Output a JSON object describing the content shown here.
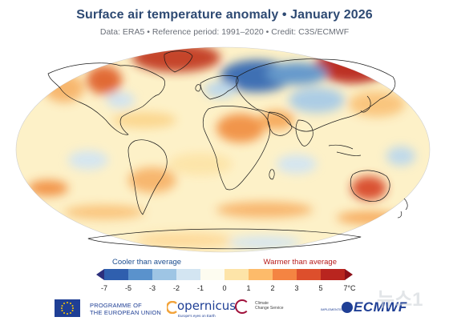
{
  "header": {
    "title": "Surface air temperature anomaly • January 2026",
    "subtitle": "Data: ERA5 • Reference period: 1991–2020 • Credit: C3S/ECMWF"
  },
  "legend": {
    "cooler_label": "Cooler than average",
    "warmer_label": "Warmer than average",
    "ticks": [
      "-7",
      "-5",
      "-3",
      "-2",
      "-1",
      "0",
      "1",
      "2",
      "3",
      "5",
      "7°C"
    ],
    "colors": [
      "#2c2f7c",
      "#2f5fae",
      "#5a92cc",
      "#9ec5e4",
      "#d3e5f2",
      "#fdfcf0",
      "#fde4a8",
      "#fdbb6a",
      "#f48442",
      "#dd4f2c",
      "#b9251f",
      "#8c1019"
    ]
  },
  "footer": {
    "eu_line1": "PROGRAMME OF",
    "eu_line2": "THE EUROPEAN UNION",
    "copernicus": "opernicus",
    "copernicus_tag": "Europe's eyes on Earth",
    "c3s_line1": "Climate",
    "c3s_line2": "Change Service",
    "implemented_by": "IMPLEMENTED BY",
    "ecmwf": "ECMWF"
  },
  "watermark": {
    "text": "뉴스1"
  }
}
